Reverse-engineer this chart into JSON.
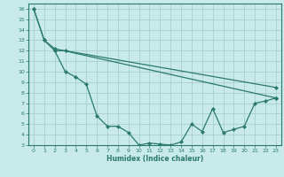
{
  "xlabel": "Humidex (Indice chaleur)",
  "bg_color": "#c8eaea",
  "grid_color": "#a0c8c8",
  "line_color": "#2a7a6a",
  "xlim": [
    -0.5,
    23.5
  ],
  "ylim": [
    3,
    16.5
  ],
  "yticks": [
    3,
    4,
    5,
    6,
    7,
    8,
    9,
    10,
    11,
    12,
    13,
    14,
    15,
    16
  ],
  "xticks": [
    0,
    1,
    2,
    3,
    4,
    5,
    6,
    7,
    8,
    9,
    10,
    11,
    12,
    13,
    14,
    15,
    16,
    17,
    18,
    19,
    20,
    21,
    22,
    23
  ],
  "line1_x": [
    0,
    1,
    2,
    3,
    4,
    5,
    6,
    7,
    8,
    9,
    10,
    11,
    12,
    13,
    14,
    15,
    16,
    17,
    18,
    19,
    20,
    21,
    22,
    23
  ],
  "line1_y": [
    16.0,
    13.0,
    12.0,
    10.0,
    9.5,
    8.8,
    5.8,
    4.8,
    4.8,
    4.2,
    3.0,
    3.2,
    3.1,
    3.0,
    3.3,
    5.0,
    4.3,
    6.5,
    4.2,
    4.5,
    4.8,
    7.0,
    7.2,
    7.5
  ],
  "line2_x": [
    0,
    1,
    2,
    23
  ],
  "line2_y": [
    16.0,
    13.0,
    12.2,
    7.5
  ],
  "line3_x": [
    2,
    3,
    23
  ],
  "line3_y": [
    12.0,
    12.0,
    8.5
  ]
}
